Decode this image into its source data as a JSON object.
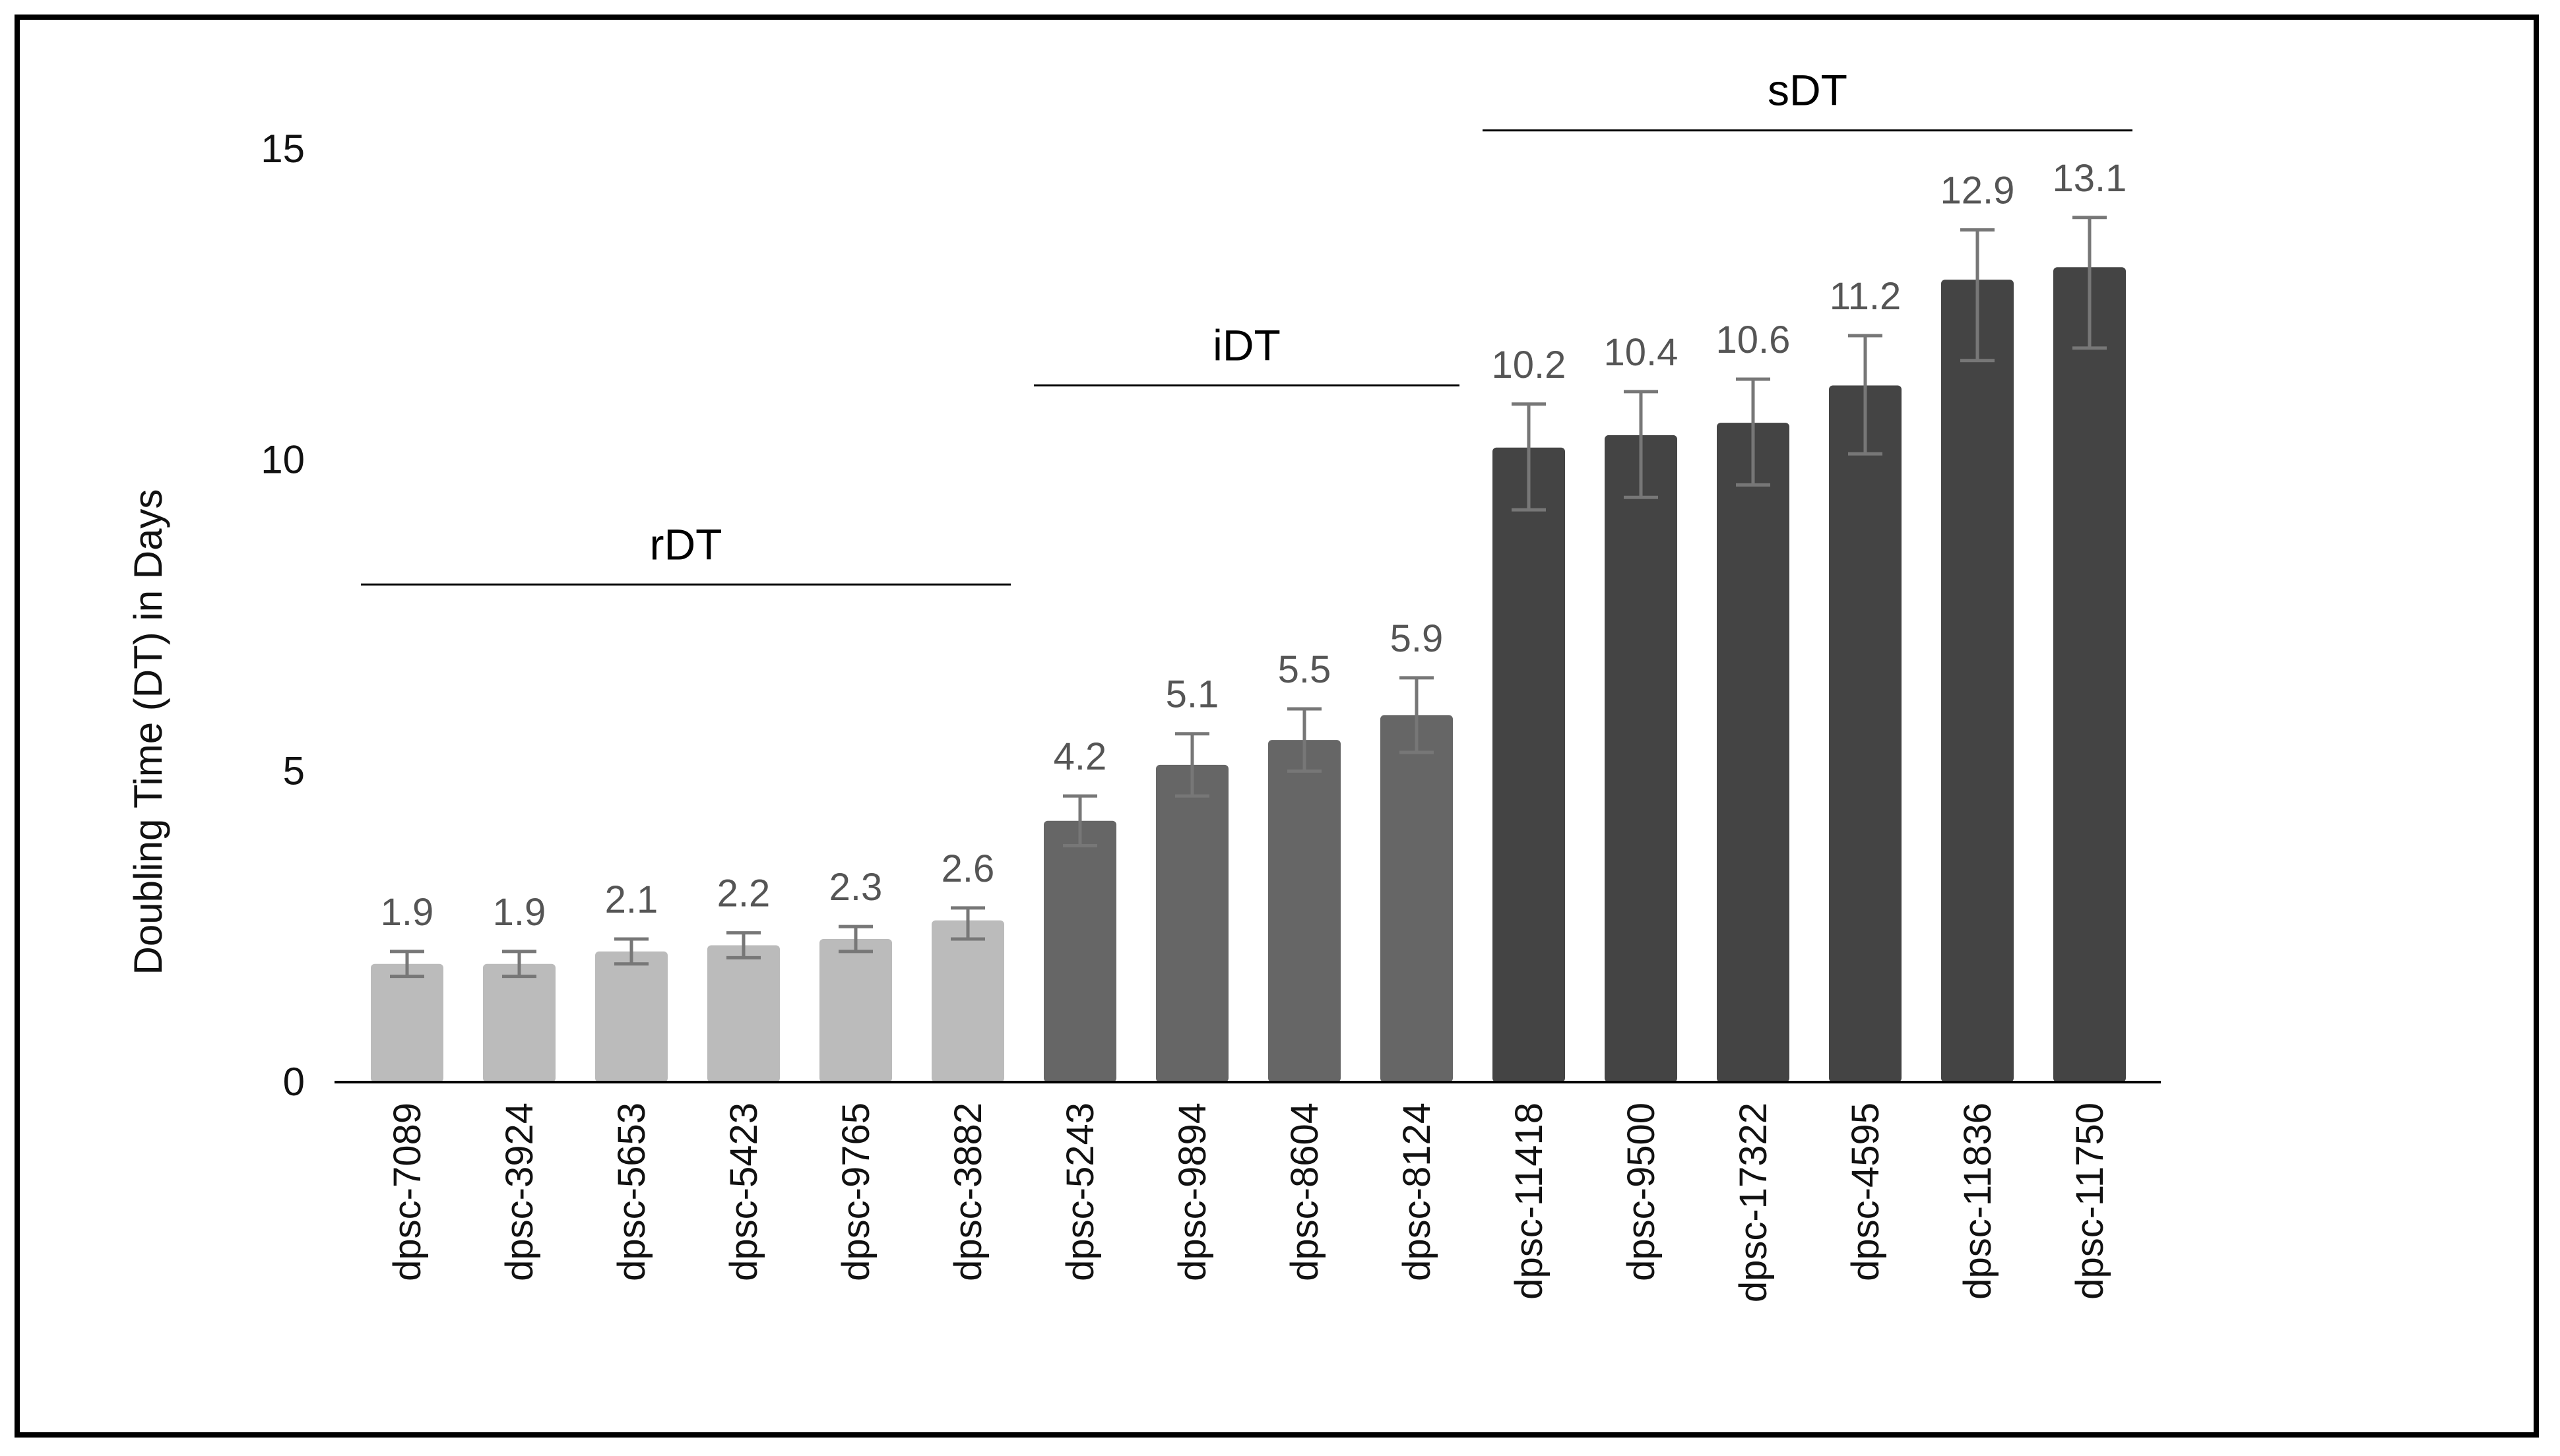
{
  "chart_data": {
    "type": "bar",
    "title": "",
    "xlabel": "",
    "ylabel": "Doubling Time (DT) in Days",
    "ylim": [
      0,
      15
    ],
    "yticks": [
      0,
      5,
      10,
      15
    ],
    "grid": false,
    "categories": [
      "dpsc-7089",
      "dpsc-3924",
      "dpsc-5653",
      "dpsc-5423",
      "dpsc-9765",
      "dpsc-3882",
      "dpsc-5243",
      "dpsc-9894",
      "dpsc-8604",
      "dpsc-8124",
      "dpsc-11418",
      "dpsc-9500",
      "dpsc-17322",
      "dpsc-4595",
      "dpsc-11836",
      "dpsc-11750"
    ],
    "values": [
      1.9,
      1.9,
      2.1,
      2.2,
      2.3,
      2.6,
      4.2,
      5.1,
      5.5,
      5.9,
      10.2,
      10.4,
      10.6,
      11.2,
      12.9,
      13.1
    ],
    "value_labels": [
      "1.9",
      "1.9",
      "2.1",
      "2.2",
      "2.3",
      "2.6",
      "4.2",
      "5.1",
      "5.5",
      "5.9",
      "10.2",
      "10.4",
      "10.6",
      "11.2",
      "12.9",
      "13.1"
    ],
    "error_low": [
      1.7,
      1.7,
      1.9,
      2.0,
      2.1,
      2.3,
      3.8,
      4.6,
      5.0,
      5.3,
      9.2,
      9.4,
      9.6,
      10.1,
      11.6,
      11.8
    ],
    "error_high": [
      2.1,
      2.1,
      2.3,
      2.4,
      2.5,
      2.8,
      4.6,
      5.6,
      6.0,
      6.5,
      10.9,
      11.1,
      11.3,
      12.0,
      13.7,
      13.9
    ],
    "bar_colors": [
      "#bbbbbb",
      "#bbbbbb",
      "#bbbbbb",
      "#bbbbbb",
      "#bbbbbb",
      "#bbbbbb",
      "#666666",
      "#666666",
      "#666666",
      "#666666",
      "#444444",
      "#444444",
      "#444444",
      "#444444",
      "#444444",
      "#444444"
    ],
    "error_bar_color": "#777777",
    "groups": [
      {
        "label": "rDT",
        "first": 0,
        "last": 5,
        "y": 8.0
      },
      {
        "label": "iDT",
        "first": 6,
        "last": 9,
        "y": 11.2
      },
      {
        "label": "sDT",
        "first": 10,
        "last": 15,
        "y": 15.3
      }
    ]
  }
}
